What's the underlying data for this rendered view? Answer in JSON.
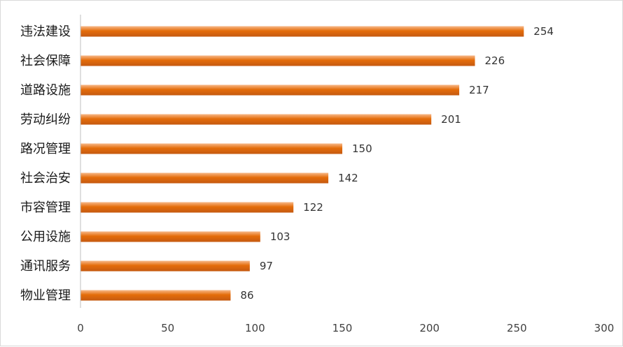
{
  "chart_data": {
    "type": "bar",
    "orientation": "horizontal",
    "categories": [
      "违法建设",
      "社会保障",
      "道路设施",
      "劳动纠纷",
      "路况管理",
      "社会治安",
      "市容管理",
      "公用设施",
      "通讯服务",
      "物业管理"
    ],
    "values": [
      254,
      226,
      217,
      201,
      150,
      142,
      122,
      103,
      97,
      86
    ],
    "xlim": [
      0,
      300
    ],
    "x_ticks": [
      0,
      50,
      100,
      150,
      200,
      250,
      300
    ],
    "grid": false,
    "legend": "none",
    "bar_color": "#e46c0a",
    "bar_color_light": "#f7b98a",
    "bar_color_dark": "#c55a11"
  }
}
